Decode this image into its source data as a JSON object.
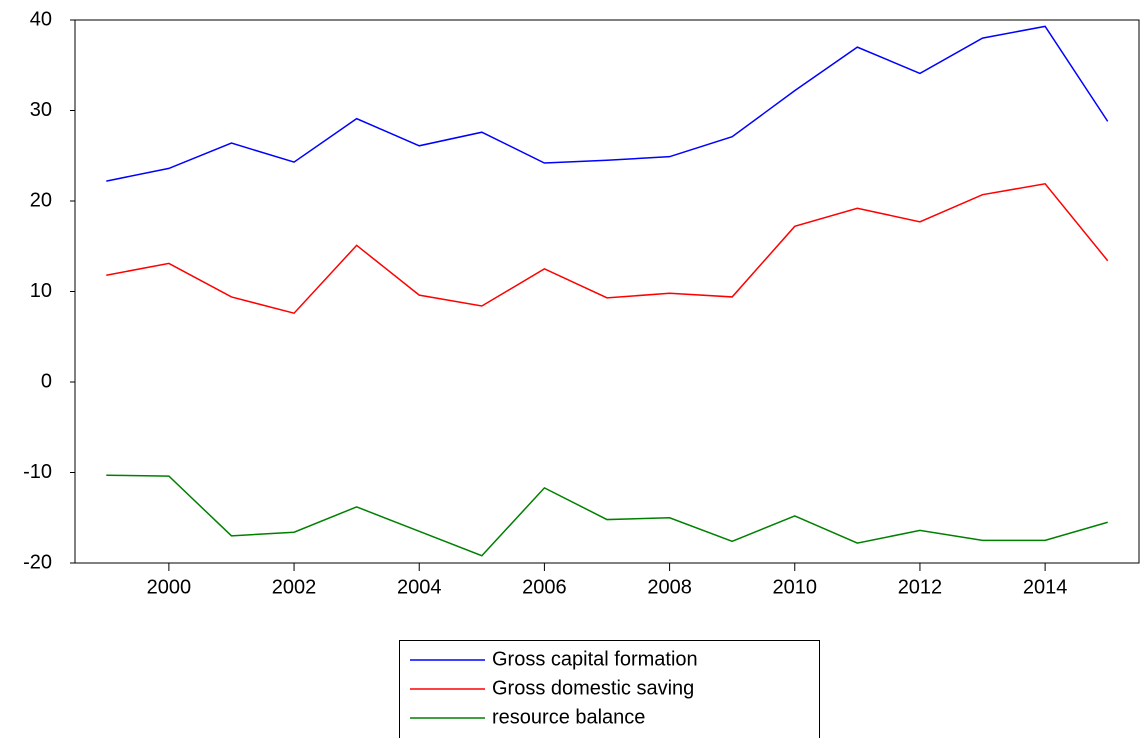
{
  "chart_data": {
    "type": "line",
    "x": [
      1999,
      2000,
      2001,
      2002,
      2003,
      2004,
      2005,
      2006,
      2007,
      2008,
      2009,
      2010,
      2011,
      2012,
      2013,
      2014,
      2015
    ],
    "xlim": [
      1998.5,
      2015.5
    ],
    "xticks": [
      2000,
      2002,
      2004,
      2006,
      2008,
      2010,
      2012,
      2014
    ],
    "ylim": [
      -20,
      40
    ],
    "yticks": [
      -20,
      -10,
      0,
      10,
      20,
      30,
      40
    ],
    "grid": false,
    "legend": "bottom",
    "series": [
      {
        "name": "Gross capital formation",
        "color": "#0000ff",
        "values": [
          22.2,
          23.6,
          26.4,
          24.3,
          29.1,
          26.1,
          27.6,
          24.2,
          24.5,
          24.9,
          27.1,
          32.2,
          37.0,
          34.1,
          38.0,
          39.3,
          28.8
        ]
      },
      {
        "name": "Gross domestic saving",
        "color": "#ff0000",
        "values": [
          11.8,
          13.1,
          9.4,
          7.6,
          15.1,
          9.6,
          8.4,
          12.5,
          9.3,
          9.8,
          9.4,
          17.2,
          19.2,
          17.7,
          20.7,
          21.9,
          13.4
        ]
      },
      {
        "name": "resource balance",
        "color": "#008000",
        "values": [
          -10.3,
          -10.4,
          -17.0,
          -16.6,
          -13.8,
          -16.5,
          -19.2,
          -11.7,
          -15.2,
          -15.0,
          -17.6,
          -14.8,
          -17.8,
          -16.4,
          -17.5,
          -17.5,
          -15.5
        ]
      }
    ]
  }
}
